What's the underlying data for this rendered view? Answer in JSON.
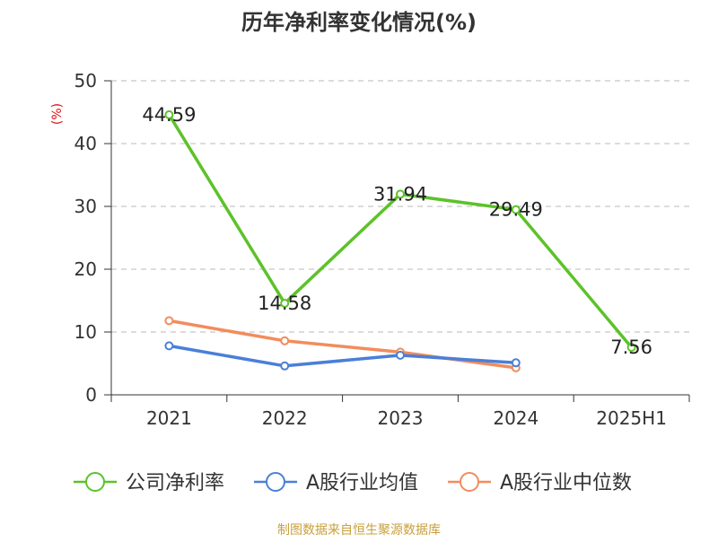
{
  "chart_data": {
    "type": "line",
    "title": "历年净利率变化情况(%)",
    "ylabel": "(%)",
    "xlabel": "",
    "categories": [
      "2021",
      "2022",
      "2023",
      "2024",
      "2025H1"
    ],
    "ylim": [
      0,
      50
    ],
    "yticks": [
      0,
      10,
      20,
      30,
      40,
      50
    ],
    "grid": true,
    "legend_position": "bottom",
    "series": [
      {
        "name": "公司净利率",
        "color": "#5cc229",
        "values": [
          44.59,
          14.58,
          31.94,
          29.49,
          7.56
        ],
        "labels": [
          "44.59",
          "14.58",
          "31.94",
          "29.49",
          "7.56"
        ]
      },
      {
        "name": "A股行业均值",
        "color": "#4a7fd9",
        "values": [
          7.8,
          4.6,
          6.3,
          5.1,
          null
        ]
      },
      {
        "name": "A股行业中位数",
        "color": "#f28c5c",
        "values": [
          11.8,
          8.6,
          6.8,
          4.3,
          null
        ]
      }
    ],
    "ylabel_color": "#e01010",
    "source_text": "制图数据来自恒生聚源数据库",
    "source_color": "#c8a03c"
  }
}
